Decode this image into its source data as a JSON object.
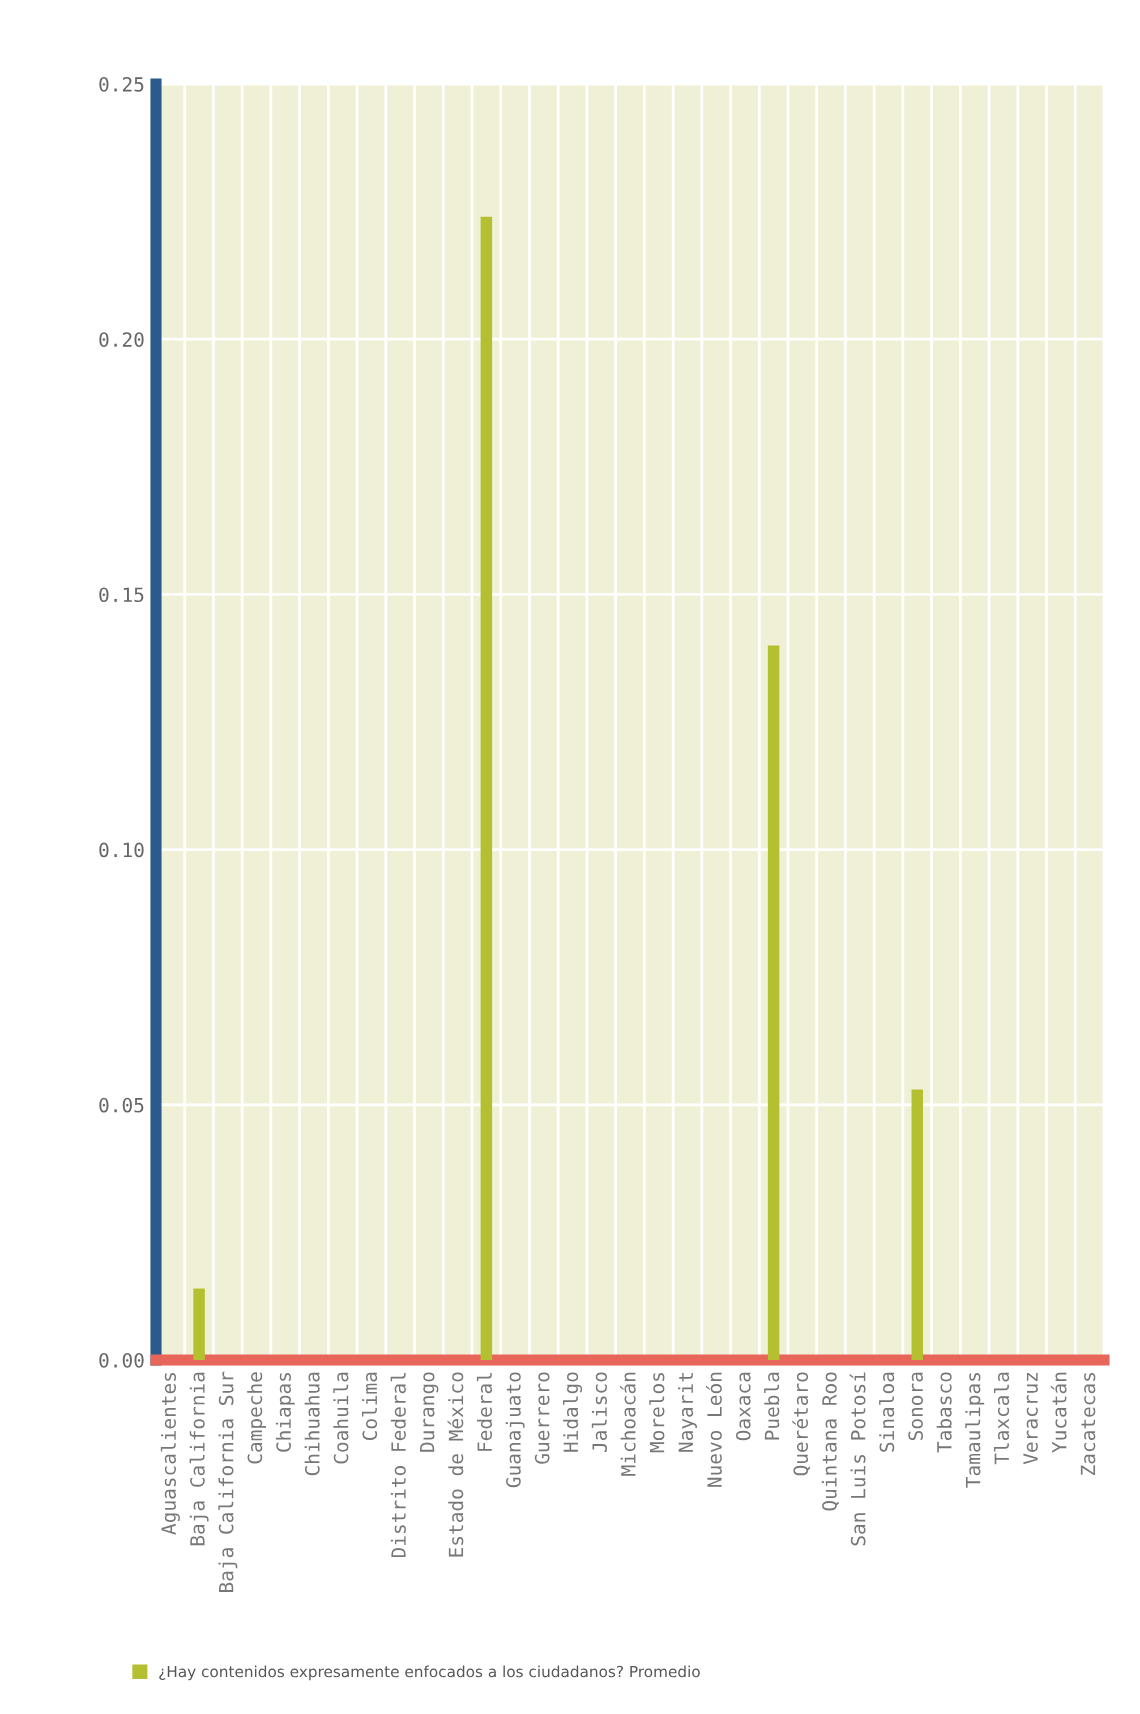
{
  "chart_data": {
    "type": "bar",
    "categories": [
      "Aguascalientes",
      "Baja California",
      "Baja California Sur",
      "Campeche",
      "Chiapas",
      "Chihuahua",
      "Coahuila",
      "Colima",
      "Distrito Federal",
      "Durango",
      "Estado de México",
      "Federal",
      "Guanajuato",
      "Guerrero",
      "Hidalgo",
      "Jalisco",
      "Michoacán",
      "Morelos",
      "Nayarit",
      "Nuevo León",
      "Oaxaca",
      "Puebla",
      "Querétaro",
      "Quintana Roo",
      "San Luis Potosí",
      "Sinaloa",
      "Sonora",
      "Tabasco",
      "Tamaulipas",
      "Tlaxcala",
      "Veracruz",
      "Yucatán",
      "Zacatecas"
    ],
    "series": [
      {
        "name": "¿Hay contenidos expresamente enfocados a los ciudadanos? Promedio",
        "color": "#b5c031",
        "values": [
          0,
          0.014,
          0,
          0,
          0,
          0,
          0,
          0,
          0,
          0,
          0,
          0.224,
          0,
          0,
          0,
          0,
          0,
          0,
          0,
          0,
          0,
          0.14,
          0,
          0,
          0,
          0,
          0.053,
          0,
          0,
          0,
          0,
          0,
          0
        ]
      }
    ],
    "ylim": [
      0,
      0.25
    ],
    "yticks": [
      {
        "value": 0,
        "label": "0.00"
      },
      {
        "value": 0.05,
        "label": "0.05"
      },
      {
        "value": 0.1,
        "label": "0.10"
      },
      {
        "value": 0.15,
        "label": "0.15"
      },
      {
        "value": 0.2,
        "label": "0.20"
      },
      {
        "value": 0.25,
        "label": "0.25"
      }
    ],
    "grid": true,
    "legend": "bottom"
  }
}
